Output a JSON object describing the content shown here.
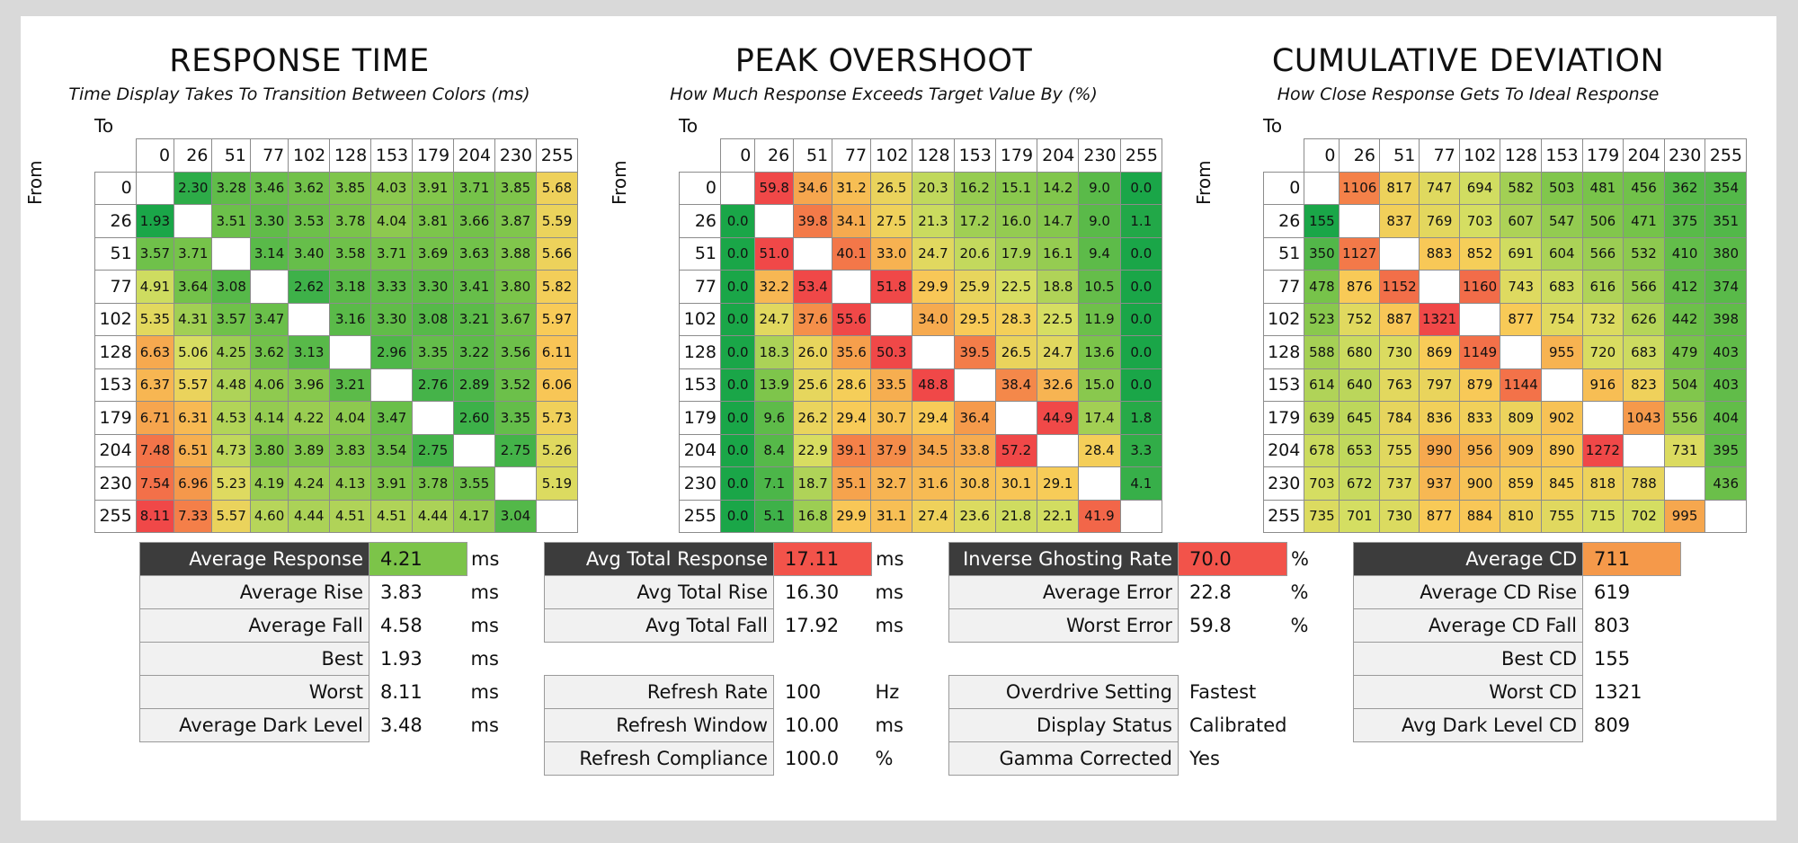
{
  "chart_data": [
    {
      "type": "heatmap",
      "title": "RESPONSE TIME",
      "subtitle": "Time Display Takes To Transition Between Colors (ms)",
      "xlabel": "To",
      "ylabel": "From",
      "categories": [
        "0",
        "26",
        "51",
        "77",
        "102",
        "128",
        "153",
        "179",
        "204",
        "230",
        "255"
      ],
      "colorscale": "low-green-high-red",
      "values": [
        [
          null,
          "2.30",
          "3.28",
          "3.46",
          "3.62",
          "3.85",
          "4.03",
          "3.91",
          "3.71",
          "3.85",
          "5.68"
        ],
        [
          "1.93",
          null,
          "3.51",
          "3.30",
          "3.53",
          "3.78",
          "4.04",
          "3.81",
          "3.66",
          "3.87",
          "5.59"
        ],
        [
          "3.57",
          "3.71",
          null,
          "3.14",
          "3.40",
          "3.58",
          "3.71",
          "3.69",
          "3.63",
          "3.88",
          "5.66"
        ],
        [
          "4.91",
          "3.64",
          "3.08",
          null,
          "2.62",
          "3.18",
          "3.33",
          "3.30",
          "3.41",
          "3.80",
          "5.82"
        ],
        [
          "5.35",
          "4.31",
          "3.57",
          "3.47",
          null,
          "3.16",
          "3.30",
          "3.08",
          "3.21",
          "3.67",
          "5.97"
        ],
        [
          "6.63",
          "5.06",
          "4.25",
          "3.62",
          "3.13",
          null,
          "2.96",
          "3.35",
          "3.22",
          "3.56",
          "6.11"
        ],
        [
          "6.37",
          "5.57",
          "4.48",
          "4.06",
          "3.96",
          "3.21",
          null,
          "2.76",
          "2.89",
          "3.52",
          "6.06"
        ],
        [
          "6.71",
          "6.31",
          "4.53",
          "4.14",
          "4.22",
          "4.04",
          "3.47",
          null,
          "2.60",
          "3.35",
          "5.73"
        ],
        [
          "7.48",
          "6.51",
          "4.73",
          "3.80",
          "3.89",
          "3.83",
          "3.54",
          "2.75",
          null,
          "2.75",
          "5.26"
        ],
        [
          "7.54",
          "6.96",
          "5.23",
          "4.19",
          "4.24",
          "4.13",
          "3.91",
          "3.78",
          "3.55",
          null,
          "5.19"
        ],
        [
          "8.11",
          "7.33",
          "5.57",
          "4.60",
          "4.44",
          "4.51",
          "4.51",
          "4.44",
          "4.17",
          "3.04",
          null
        ]
      ]
    },
    {
      "type": "heatmap",
      "title": "PEAK OVERSHOOT",
      "subtitle": "How Much Response Exceeds Target Value By (%)",
      "xlabel": "To",
      "ylabel": "From",
      "categories": [
        "0",
        "26",
        "51",
        "77",
        "102",
        "128",
        "153",
        "179",
        "204",
        "230",
        "255"
      ],
      "colorscale": "low-green-high-red",
      "values": [
        [
          null,
          "59.8",
          "34.6",
          "31.2",
          "26.5",
          "20.3",
          "16.2",
          "15.1",
          "14.2",
          "9.0",
          "0.0"
        ],
        [
          "0.0",
          null,
          "39.8",
          "34.1",
          "27.5",
          "21.3",
          "17.2",
          "16.0",
          "14.7",
          "9.0",
          "1.1"
        ],
        [
          "0.0",
          "51.0",
          null,
          "40.1",
          "33.0",
          "24.7",
          "20.6",
          "17.9",
          "16.1",
          "9.4",
          "0.0"
        ],
        [
          "0.0",
          "32.2",
          "53.4",
          null,
          "51.8",
          "29.9",
          "25.9",
          "22.5",
          "18.8",
          "10.5",
          "0.0"
        ],
        [
          "0.0",
          "24.7",
          "37.6",
          "55.6",
          null,
          "34.0",
          "29.5",
          "28.3",
          "22.5",
          "11.9",
          "0.0"
        ],
        [
          "0.0",
          "18.3",
          "26.0",
          "35.6",
          "50.3",
          null,
          "39.5",
          "26.5",
          "24.7",
          "13.6",
          "0.0"
        ],
        [
          "0.0",
          "13.9",
          "25.6",
          "28.6",
          "33.5",
          "48.8",
          null,
          "38.4",
          "32.6",
          "15.0",
          "0.0"
        ],
        [
          "0.0",
          "9.6",
          "26.2",
          "29.4",
          "30.7",
          "29.4",
          "36.4",
          null,
          "44.9",
          "17.4",
          "1.8"
        ],
        [
          "0.0",
          "8.4",
          "22.9",
          "39.1",
          "37.9",
          "34.5",
          "33.8",
          "57.2",
          null,
          "28.4",
          "3.3"
        ],
        [
          "0.0",
          "7.1",
          "18.7",
          "35.1",
          "32.7",
          "31.6",
          "30.8",
          "30.1",
          "29.1",
          null,
          "4.1"
        ],
        [
          "0.0",
          "5.1",
          "16.8",
          "29.9",
          "31.1",
          "27.4",
          "23.6",
          "21.8",
          "22.1",
          "41.9",
          null
        ]
      ]
    },
    {
      "type": "heatmap",
      "title": "CUMULATIVE DEVIATION",
      "subtitle": "How Close Response Gets To Ideal Response",
      "xlabel": "To",
      "ylabel": "From",
      "categories": [
        "0",
        "26",
        "51",
        "77",
        "102",
        "128",
        "153",
        "179",
        "204",
        "230",
        "255"
      ],
      "colorscale": "low-green-high-red",
      "values": [
        [
          null,
          "1106",
          "817",
          "747",
          "694",
          "582",
          "503",
          "481",
          "456",
          "362",
          "354"
        ],
        [
          "155",
          null,
          "837",
          "769",
          "703",
          "607",
          "547",
          "506",
          "471",
          "375",
          "351"
        ],
        [
          "350",
          "1127",
          null,
          "883",
          "852",
          "691",
          "604",
          "566",
          "532",
          "410",
          "380"
        ],
        [
          "478",
          "876",
          "1152",
          null,
          "1160",
          "743",
          "683",
          "616",
          "566",
          "412",
          "374"
        ],
        [
          "523",
          "752",
          "887",
          "1321",
          null,
          "877",
          "754",
          "732",
          "626",
          "442",
          "398"
        ],
        [
          "588",
          "680",
          "730",
          "869",
          "1149",
          null,
          "955",
          "720",
          "683",
          "479",
          "403"
        ],
        [
          "614",
          "640",
          "763",
          "797",
          "879",
          "1144",
          null,
          "916",
          "823",
          "504",
          "403"
        ],
        [
          "639",
          "645",
          "784",
          "836",
          "833",
          "809",
          "902",
          null,
          "1043",
          "556",
          "404"
        ],
        [
          "678",
          "653",
          "755",
          "990",
          "956",
          "909",
          "890",
          "1272",
          null,
          "731",
          "395"
        ],
        [
          "703",
          "672",
          "737",
          "937",
          "900",
          "859",
          "845",
          "818",
          "788",
          null,
          "436"
        ],
        [
          "735",
          "701",
          "730",
          "877",
          "884",
          "810",
          "755",
          "715",
          "702",
          "995",
          null
        ]
      ]
    }
  ],
  "stats": [
    {
      "rows": [
        {
          "label": "Average Response",
          "value": "4.21",
          "unit": "ms",
          "header": true,
          "highlight": "#7cc449"
        },
        {
          "label": "Average Rise",
          "value": "3.83",
          "unit": "ms"
        },
        {
          "label": "Average Fall",
          "value": "4.58",
          "unit": "ms"
        },
        {
          "label": "Best",
          "value": "1.93",
          "unit": "ms"
        },
        {
          "label": "Worst",
          "value": "8.11",
          "unit": "ms"
        },
        {
          "label": "Average Dark Level",
          "value": "3.48",
          "unit": "ms"
        }
      ]
    },
    {
      "rows": [
        {
          "label": "Avg Total Response",
          "value": "17.11",
          "unit": "ms",
          "header": true,
          "highlight": "#f2534a"
        },
        {
          "label": "Avg Total Rise",
          "value": "16.30",
          "unit": "ms"
        },
        {
          "label": "Avg Total Fall",
          "value": "17.92",
          "unit": "ms"
        },
        {
          "gap": true
        },
        {
          "label": "Refresh Rate",
          "value": "100",
          "unit": "Hz"
        },
        {
          "label": "Refresh Window",
          "value": "10.00",
          "unit": "ms"
        },
        {
          "label": "Refresh Compliance",
          "value": "100.0",
          "unit": "%"
        }
      ]
    },
    {
      "rows": [
        {
          "label": "Inverse Ghosting Rate",
          "value": "70.0",
          "unit": "%",
          "header": true,
          "highlight": "#f2534a"
        },
        {
          "label": "Average Error",
          "value": "22.8",
          "unit": "%"
        },
        {
          "label": "Worst Error",
          "value": "59.8",
          "unit": "%"
        },
        {
          "gap": true
        },
        {
          "label": "Overdrive Setting",
          "value": "Fastest",
          "unit": ""
        },
        {
          "label": "Display Status",
          "value": "Calibrated",
          "unit": ""
        },
        {
          "label": "Gamma Corrected",
          "value": "Yes",
          "unit": ""
        }
      ]
    },
    {
      "rows": [
        {
          "label": "Average CD",
          "value": "711",
          "unit": "",
          "header": true,
          "highlight": "#f5994a"
        },
        {
          "label": "Average CD Rise",
          "value": "619",
          "unit": ""
        },
        {
          "label": "Average CD Fall",
          "value": "803",
          "unit": ""
        },
        {
          "label": "Best CD",
          "value": "155",
          "unit": ""
        },
        {
          "label": "Worst CD",
          "value": "1321",
          "unit": ""
        },
        {
          "label": "Avg Dark Level CD",
          "value": "809",
          "unit": ""
        }
      ]
    }
  ]
}
